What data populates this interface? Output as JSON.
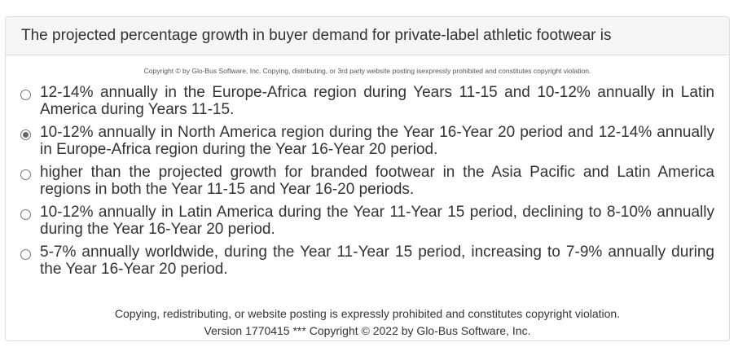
{
  "question": {
    "text": "The projected percentage growth in buyer demand for private-label athletic footwear is"
  },
  "copyright_notice": "Copyright © by Glo-Bus Software, Inc. Copying, distributing, or 3rd party website posting isexpressly prohibited and constitutes copyright violation.",
  "options": [
    {
      "text": "12-14% annually in the Europe-Africa region during Years 11-15 and 10-12% annually in Latin America during Years 11-15.",
      "selected": false
    },
    {
      "text": "10-12% annually in North America region during the Year 16-Year 20 period and 12-14% annually in Europe-Africa region during the Year 16-Year 20 period.",
      "selected": true
    },
    {
      "text": "higher than the projected growth for branded footwear in the Asia Pacific and Latin America regions in both the Year 11-15 and Year 16-20 periods.",
      "selected": false
    },
    {
      "text": "10-12% annually in Latin America during the Year 11-Year 15 period, declining to 8-10% annually during the Year 16-Year 20 period.",
      "selected": false
    },
    {
      "text": "5-7% annually worldwide, during the Year 11-Year 15 period, increasing to 7-9% annually during the Year 16-Year 20 period.",
      "selected": false
    }
  ],
  "footer": {
    "line1": "Copying, redistributing, or website posting is expressly prohibited and constitutes copyright violation.",
    "line2": "Version 1770415 *** Copyright © 2022 by Glo-Bus Software, Inc."
  }
}
